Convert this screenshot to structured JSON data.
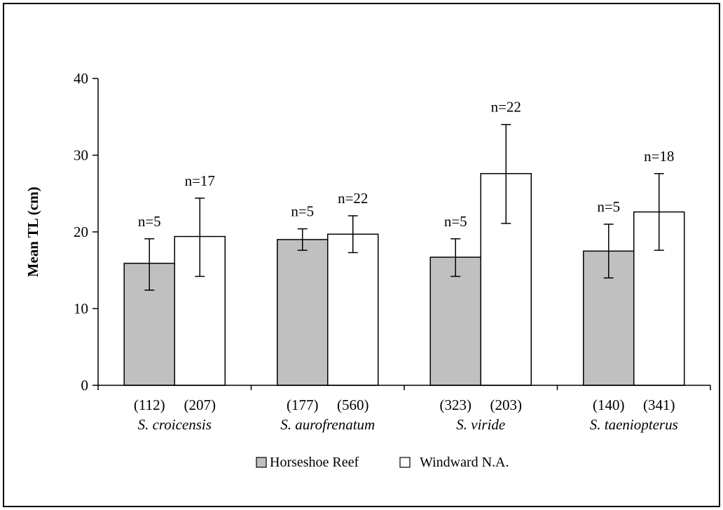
{
  "chart_data": {
    "type": "bar",
    "title": "",
    "xlabel": "",
    "ylabel": "Mean TL (cm)",
    "ylim": [
      0,
      40
    ],
    "yticks": [
      0,
      10,
      20,
      30,
      40
    ],
    "grid": false,
    "legend_position": "bottom",
    "categories": [
      "S. croicensis",
      "S. aurofrenatum",
      "S. viride",
      "S. taeniopterus"
    ],
    "category_counts": [
      [
        "(112)",
        "(207)"
      ],
      [
        "(177)",
        "(560)"
      ],
      [
        "(323)",
        "(203)"
      ],
      [
        "(140)",
        "(341)"
      ]
    ],
    "series": [
      {
        "name": "Horseshoe Reef",
        "color": "#c0c0c0",
        "values": [
          15.9,
          19.0,
          16.7,
          17.5
        ],
        "err_low": [
          12.4,
          17.6,
          14.2,
          14.0
        ],
        "err_high": [
          19.1,
          20.4,
          19.1,
          21.0
        ],
        "n_labels": [
          "n=5",
          "n=5",
          "n=5",
          "n=5"
        ]
      },
      {
        "name": "Windward N.A.",
        "color": "#ffffff",
        "values": [
          19.4,
          19.7,
          27.6,
          22.6
        ],
        "err_low": [
          14.2,
          17.3,
          21.1,
          17.6
        ],
        "err_high": [
          24.4,
          22.1,
          34.0,
          27.6
        ],
        "n_labels": [
          "n=17",
          "n=22",
          "n=22",
          "n=18"
        ]
      }
    ]
  }
}
